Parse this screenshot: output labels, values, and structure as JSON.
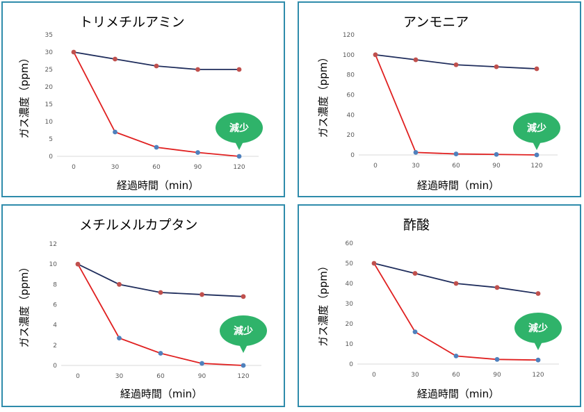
{
  "colors": {
    "border": "#2e8bab",
    "control_line": "#1f2d5c",
    "control_point": "#c0504d",
    "treated_line": "#e02020",
    "treated_point": "#4f81bd",
    "bubble": "#2fb36a"
  },
  "ylabel": "ガス濃度（ppm）",
  "xlabel": "経過時間（min）",
  "annotation": "減少",
  "chart_data": [
    {
      "type": "line",
      "title": "トリメチルアミン",
      "x": [
        0,
        30,
        60,
        90,
        120
      ],
      "ylim": [
        0,
        35
      ],
      "yticks": [
        0,
        5,
        10,
        15,
        20,
        25,
        30,
        35
      ],
      "series": [
        {
          "values": [
            30,
            28,
            26,
            25,
            25
          ]
        },
        {
          "values": [
            30,
            7,
            2.6,
            1.1,
            0
          ]
        }
      ]
    },
    {
      "type": "line",
      "title": "アンモニア",
      "x": [
        0,
        30,
        60,
        90,
        120
      ],
      "ylim": [
        0,
        120
      ],
      "yticks": [
        0,
        20,
        40,
        60,
        80,
        100,
        120
      ],
      "series": [
        {
          "values": [
            100,
            95,
            90,
            88,
            86
          ]
        },
        {
          "values": [
            100,
            2.5,
            1,
            0.5,
            0
          ]
        }
      ]
    },
    {
      "type": "line",
      "title": "メチルメルカプタン",
      "x": [
        0,
        30,
        60,
        90,
        120
      ],
      "ylim": [
        0,
        12
      ],
      "yticks": [
        0,
        2,
        4,
        6,
        8,
        10,
        12
      ],
      "series": [
        {
          "values": [
            10,
            8,
            7.2,
            7,
            6.8
          ]
        },
        {
          "values": [
            10,
            2.7,
            1.2,
            0.2,
            0
          ]
        }
      ]
    },
    {
      "type": "line",
      "title": "酢酸",
      "x": [
        0,
        30,
        60,
        90,
        120
      ],
      "ylim": [
        0,
        60
      ],
      "yticks": [
        0,
        10,
        20,
        30,
        40,
        50,
        60
      ],
      "series": [
        {
          "values": [
            50,
            45,
            40,
            38,
            35
          ]
        },
        {
          "values": [
            50,
            16,
            4,
            2.3,
            2
          ]
        }
      ]
    }
  ]
}
